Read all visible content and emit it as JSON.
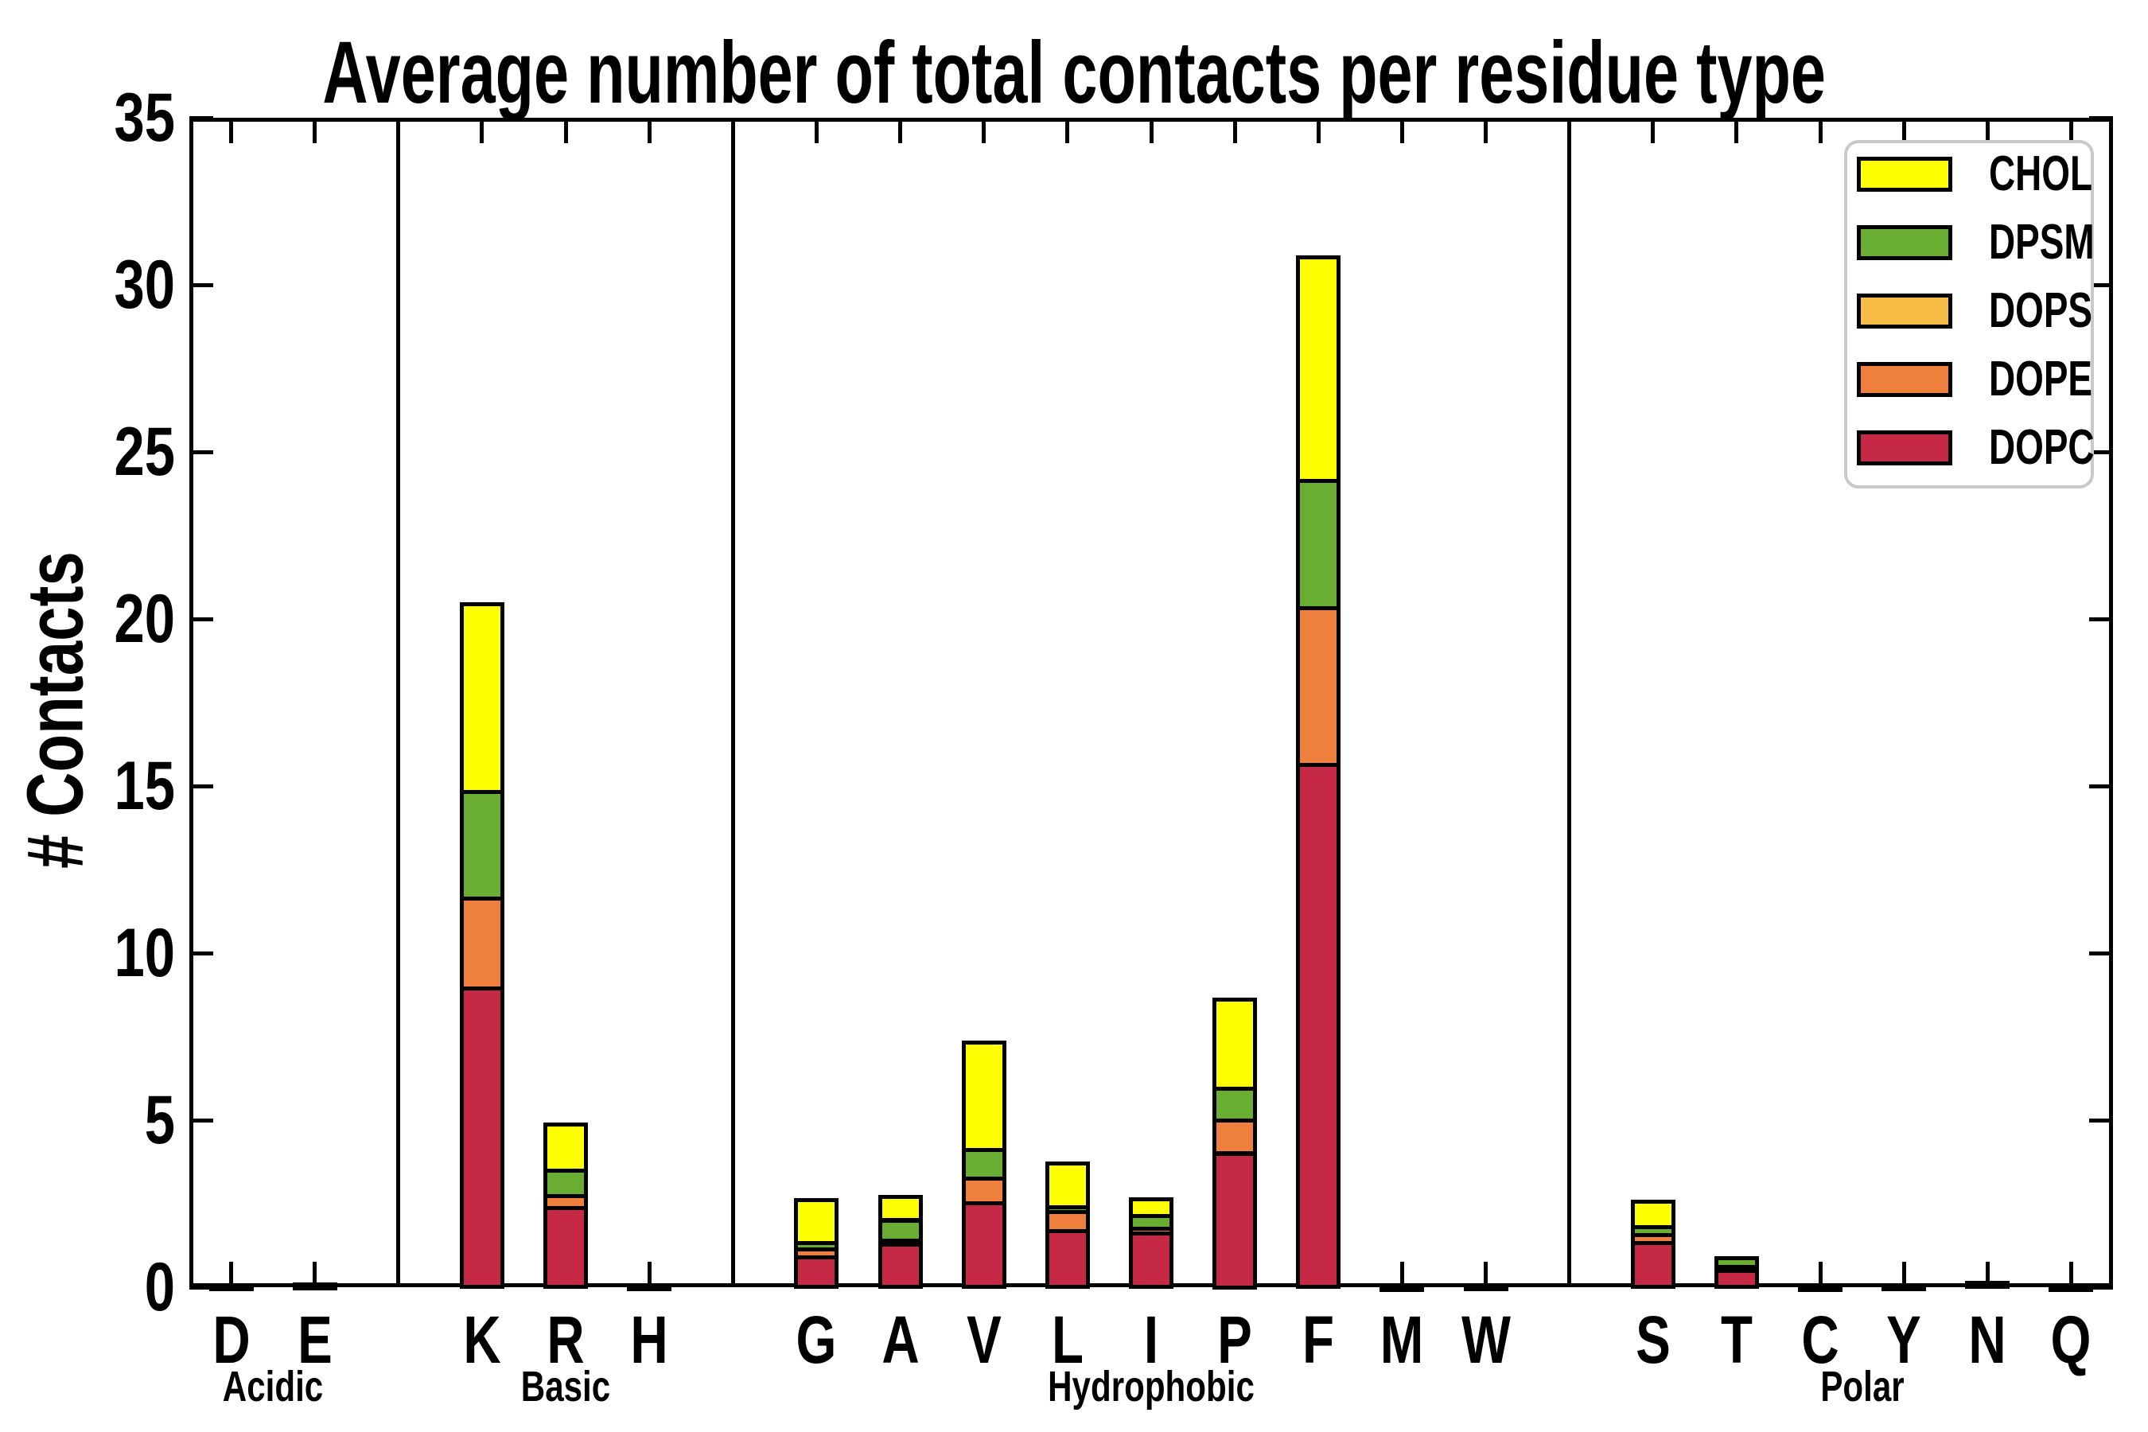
{
  "title": "Average number of total contacts per residue type",
  "ylabel": "# Contacts",
  "chart_data": {
    "type": "bar",
    "stacked": true,
    "categories": [
      "D",
      "E",
      "K",
      "R",
      "H",
      "G",
      "A",
      "V",
      "L",
      "I",
      "P",
      "F",
      "M",
      "W",
      "S",
      "T",
      "C",
      "Y",
      "N",
      "Q"
    ],
    "groups": [
      {
        "label": "Acidic",
        "members": [
          "D",
          "E"
        ]
      },
      {
        "label": "Basic",
        "members": [
          "K",
          "R",
          "H"
        ]
      },
      {
        "label": "Hydrophobic",
        "members": [
          "G",
          "A",
          "V",
          "L",
          "I",
          "P",
          "F",
          "M",
          "W"
        ]
      },
      {
        "label": "Polar",
        "members": [
          "S",
          "T",
          "C",
          "Y",
          "N",
          "Q"
        ]
      }
    ],
    "series": [
      {
        "name": "DOPC",
        "color": "#c52946",
        "values": [
          0.06,
          0.08,
          8.93,
          2.36,
          0.06,
          0.9,
          1.33,
          2.52,
          1.69,
          1.6,
          4.0,
          15.64,
          0.04,
          0.05,
          1.31,
          0.48,
          0.04,
          0.05,
          0.12,
          0.03
        ]
      },
      {
        "name": "DOPE",
        "color": "#ee7f3d",
        "values": [
          0,
          0,
          2.69,
          0.36,
          0,
          0.24,
          0.07,
          0.72,
          0.57,
          0.14,
          0.98,
          4.67,
          0,
          0,
          0.24,
          0.12,
          0,
          0,
          0,
          0
        ]
      },
      {
        "name": "DOPS",
        "color": "#f8bd47",
        "values": [
          0,
          0,
          0,
          0,
          0,
          0,
          0,
          0,
          0,
          0,
          0,
          0,
          0,
          0,
          0,
          0,
          0,
          0,
          0,
          0
        ]
      },
      {
        "name": "DPSM",
        "color": "#69ad33",
        "values": [
          0,
          0,
          3.19,
          0.76,
          0,
          0.19,
          0.6,
          0.86,
          0.14,
          0.4,
          0.95,
          3.83,
          0,
          0,
          0.24,
          0.28,
          0,
          0,
          0,
          0
        ]
      },
      {
        "name": "CHOL",
        "color": "#ffff00",
        "values": [
          0,
          0,
          5.64,
          1.4,
          0,
          1.27,
          0.71,
          3.21,
          1.31,
          0.48,
          2.67,
          6.69,
          0,
          0,
          0.76,
          0,
          0,
          0,
          0,
          0
        ]
      }
    ],
    "legend_order": [
      "CHOL",
      "DPSM",
      "DOPS",
      "DOPE",
      "DOPC"
    ],
    "legend_position": "top-right",
    "ylim": [
      0,
      35
    ],
    "yticks": [
      0,
      5,
      10,
      15,
      20,
      25,
      30,
      35
    ],
    "grid": false,
    "bar_outline_color": "#000000",
    "separator_slots_between_groups": true
  }
}
